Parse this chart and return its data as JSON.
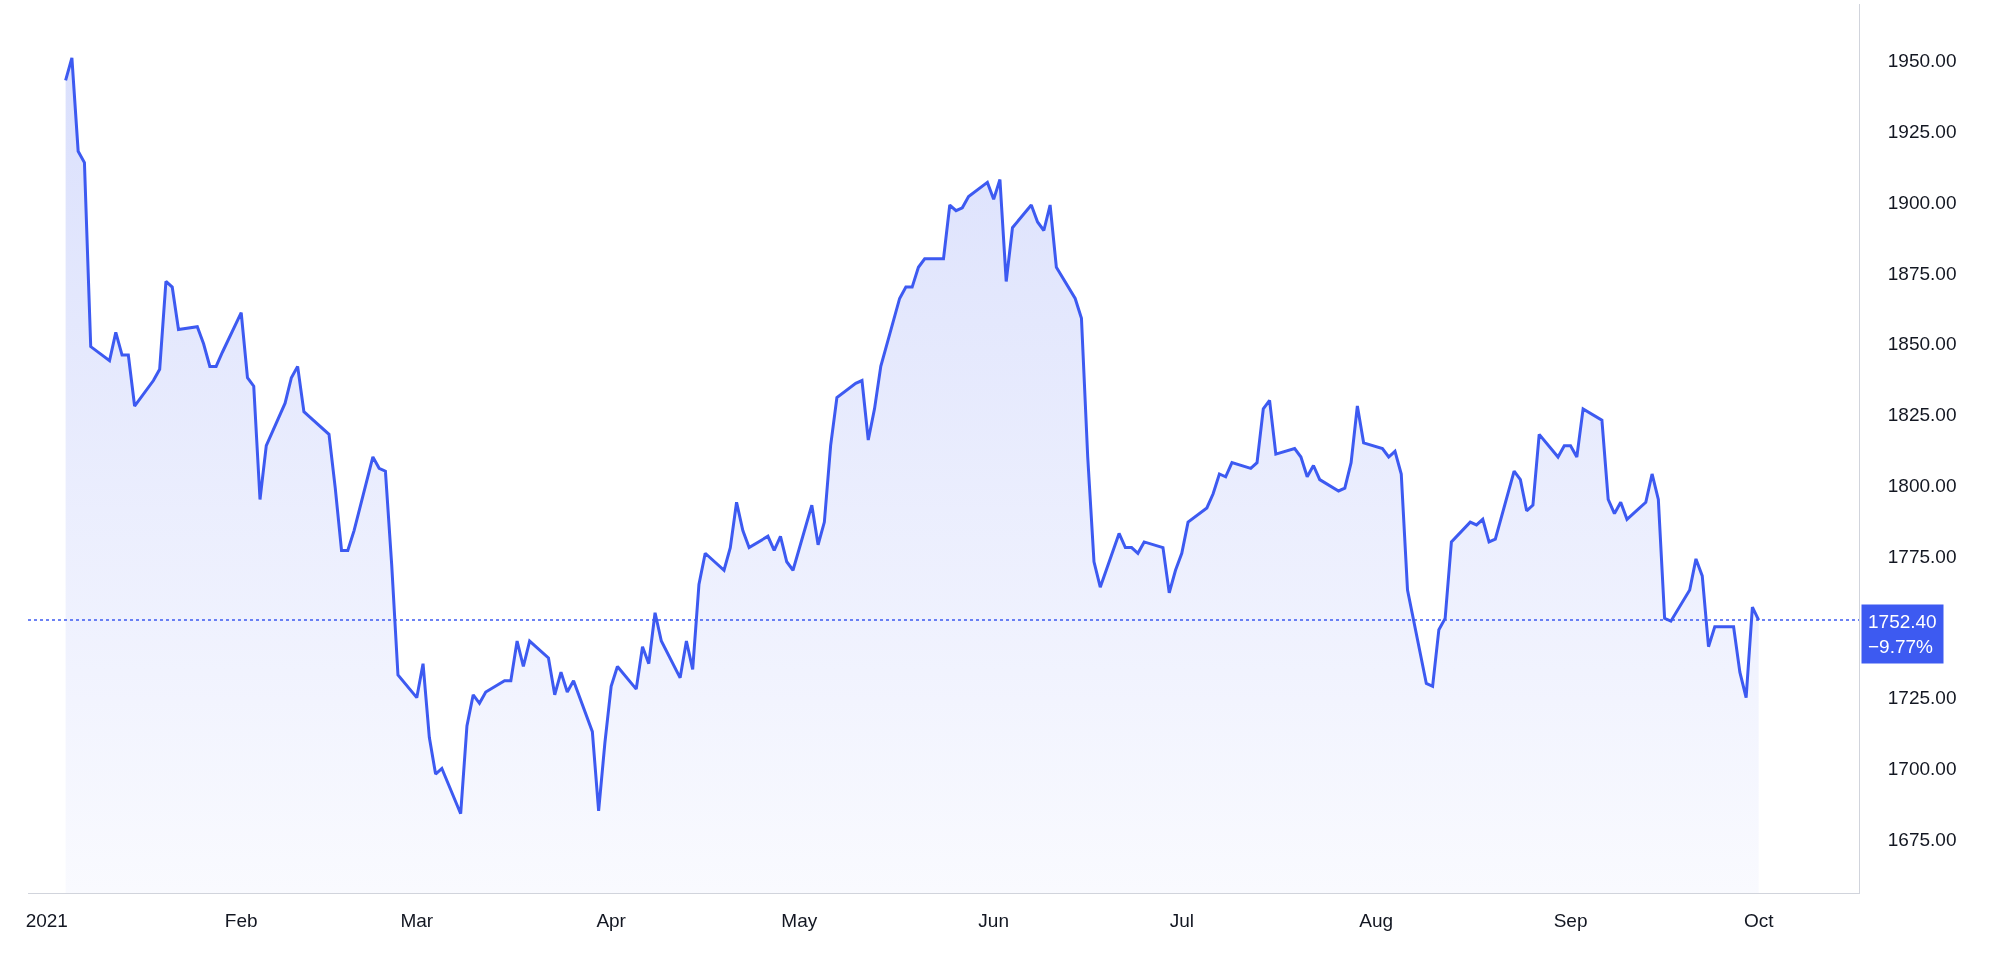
{
  "chart_data": {
    "type": "area",
    "x": [
      "2021-01-04",
      "2021-01-05",
      "2021-01-06",
      "2021-01-07",
      "2021-01-08",
      "2021-01-11",
      "2021-01-12",
      "2021-01-13",
      "2021-01-14",
      "2021-01-15",
      "2021-01-18",
      "2021-01-19",
      "2021-01-20",
      "2021-01-21",
      "2021-01-22",
      "2021-01-25",
      "2021-01-26",
      "2021-01-27",
      "2021-01-28",
      "2021-01-29",
      "2021-02-01",
      "2021-02-02",
      "2021-02-03",
      "2021-02-04",
      "2021-02-05",
      "2021-02-08",
      "2021-02-09",
      "2021-02-10",
      "2021-02-11",
      "2021-02-12",
      "2021-02-15",
      "2021-02-16",
      "2021-02-17",
      "2021-02-18",
      "2021-02-19",
      "2021-02-22",
      "2021-02-23",
      "2021-02-24",
      "2021-02-25",
      "2021-02-26",
      "2021-03-01",
      "2021-03-02",
      "2021-03-03",
      "2021-03-04",
      "2021-03-05",
      "2021-03-08",
      "2021-03-09",
      "2021-03-10",
      "2021-03-11",
      "2021-03-12",
      "2021-03-15",
      "2021-03-16",
      "2021-03-17",
      "2021-03-18",
      "2021-03-19",
      "2021-03-22",
      "2021-03-23",
      "2021-03-24",
      "2021-03-25",
      "2021-03-26",
      "2021-03-29",
      "2021-03-30",
      "2021-03-31",
      "2021-04-01",
      "2021-04-02",
      "2021-04-05",
      "2021-04-06",
      "2021-04-07",
      "2021-04-08",
      "2021-04-09",
      "2021-04-12",
      "2021-04-13",
      "2021-04-14",
      "2021-04-15",
      "2021-04-16",
      "2021-04-19",
      "2021-04-20",
      "2021-04-21",
      "2021-04-22",
      "2021-04-23",
      "2021-04-26",
      "2021-04-27",
      "2021-04-28",
      "2021-04-29",
      "2021-04-30",
      "2021-05-03",
      "2021-05-04",
      "2021-05-05",
      "2021-05-06",
      "2021-05-07",
      "2021-05-10",
      "2021-05-11",
      "2021-05-12",
      "2021-05-13",
      "2021-05-14",
      "2021-05-17",
      "2021-05-18",
      "2021-05-19",
      "2021-05-20",
      "2021-05-21",
      "2021-05-24",
      "2021-05-25",
      "2021-05-26",
      "2021-05-27",
      "2021-05-28",
      "2021-05-31",
      "2021-06-01",
      "2021-06-02",
      "2021-06-03",
      "2021-06-04",
      "2021-06-07",
      "2021-06-08",
      "2021-06-09",
      "2021-06-10",
      "2021-06-11",
      "2021-06-14",
      "2021-06-15",
      "2021-06-16",
      "2021-06-17",
      "2021-06-18",
      "2021-06-21",
      "2021-06-22",
      "2021-06-23",
      "2021-06-24",
      "2021-06-25",
      "2021-06-28",
      "2021-06-29",
      "2021-06-30",
      "2021-07-01",
      "2021-07-02",
      "2021-07-05",
      "2021-07-06",
      "2021-07-07",
      "2021-07-08",
      "2021-07-09",
      "2021-07-12",
      "2021-07-13",
      "2021-07-14",
      "2021-07-15",
      "2021-07-16",
      "2021-07-19",
      "2021-07-20",
      "2021-07-21",
      "2021-07-22",
      "2021-07-23",
      "2021-07-26",
      "2021-07-27",
      "2021-07-28",
      "2021-07-29",
      "2021-07-30",
      "2021-08-02",
      "2021-08-03",
      "2021-08-04",
      "2021-08-05",
      "2021-08-06",
      "2021-08-09",
      "2021-08-10",
      "2021-08-11",
      "2021-08-12",
      "2021-08-13",
      "2021-08-16",
      "2021-08-17",
      "2021-08-18",
      "2021-08-19",
      "2021-08-20",
      "2021-08-23",
      "2021-08-24",
      "2021-08-25",
      "2021-08-26",
      "2021-08-27",
      "2021-08-30",
      "2021-08-31",
      "2021-09-01",
      "2021-09-02",
      "2021-09-03",
      "2021-09-06",
      "2021-09-07",
      "2021-09-08",
      "2021-09-09",
      "2021-09-10",
      "2021-09-13",
      "2021-09-14",
      "2021-09-15",
      "2021-09-16",
      "2021-09-17",
      "2021-09-20",
      "2021-09-21",
      "2021-09-22",
      "2021-09-23",
      "2021-09-24",
      "2021-09-27",
      "2021-09-28",
      "2021-09-29",
      "2021-09-30",
      "2021-10-01"
    ],
    "series": [
      {
        "color": "#3d5af1",
        "values": [
          1943,
          1951,
          1918,
          1914,
          1849,
          1844,
          1854,
          1846,
          1846,
          1828,
          1837,
          1841,
          1872,
          1870,
          1855,
          1856,
          1850,
          1842,
          1842,
          1847,
          1861,
          1838,
          1835,
          1795,
          1814,
          1829,
          1838,
          1842,
          1826,
          1824,
          1818,
          1799,
          1777,
          1777,
          1784,
          1810,
          1806,
          1805,
          1772,
          1733,
          1725,
          1737,
          1711,
          1698,
          1700,
          1684,
          1715,
          1726,
          1723,
          1727,
          1731,
          1731,
          1745,
          1736,
          1745,
          1739,
          1726,
          1734,
          1727,
          1731,
          1713,
          1685,
          1709,
          1729,
          1736,
          1728,
          1743,
          1737,
          1755,
          1745,
          1732,
          1745,
          1735,
          1765,
          1776,
          1770,
          1778,
          1794,
          1784,
          1778,
          1782,
          1777,
          1782,
          1773,
          1770,
          1793,
          1779,
          1787,
          1814,
          1831,
          1836,
          1837,
          1816,
          1827,
          1842,
          1866,
          1870,
          1870,
          1877,
          1880,
          1880,
          1899,
          1897,
          1898,
          1902,
          1907,
          1901,
          1908,
          1872,
          1891,
          1899,
          1893,
          1890,
          1899,
          1877,
          1866,
          1859,
          1810,
          1773,
          1764,
          1783,
          1778,
          1778,
          1776,
          1780,
          1778,
          1762,
          1770,
          1776,
          1787,
          1792,
          1797,
          1804,
          1803,
          1808,
          1806,
          1808,
          1827,
          1830,
          1811,
          1813,
          1810,
          1803,
          1807,
          1802,
          1798,
          1799,
          1808,
          1828,
          1815,
          1813,
          1810,
          1812,
          1804,
          1763,
          1730,
          1729,
          1749,
          1753,
          1780,
          1787,
          1786,
          1788,
          1780,
          1781,
          1805,
          1802,
          1791,
          1793,
          1818,
          1810,
          1814,
          1814,
          1810,
          1827,
          1823,
          1795,
          1790,
          1794,
          1788,
          1794,
          1804,
          1795,
          1753,
          1752,
          1763,
          1774,
          1768,
          1743,
          1750,
          1750,
          1734,
          1725,
          1757,
          1752.4
        ]
      }
    ],
    "xlim": [
      "2020-12-29",
      "2021-10-17"
    ],
    "xticks": [
      {
        "value": "2021-01-01",
        "label": "2021"
      },
      {
        "value": "2021-02-01",
        "label": "Feb"
      },
      {
        "value": "2021-03-01",
        "label": "Mar"
      },
      {
        "value": "2021-04-01",
        "label": "Apr"
      },
      {
        "value": "2021-05-01",
        "label": "May"
      },
      {
        "value": "2021-06-01",
        "label": "Jun"
      },
      {
        "value": "2021-07-01",
        "label": "Jul"
      },
      {
        "value": "2021-08-01",
        "label": "Aug"
      },
      {
        "value": "2021-09-01",
        "label": "Sep"
      },
      {
        "value": "2021-10-01",
        "label": "Oct"
      }
    ],
    "ylim": [
      1656,
      1970
    ],
    "yticks": [
      {
        "value": 1675,
        "label": "1675.00"
      },
      {
        "value": 1700,
        "label": "1700.00"
      },
      {
        "value": 1725,
        "label": "1725.00"
      },
      {
        "value": 1775,
        "label": "1775.00"
      },
      {
        "value": 1800,
        "label": "1800.00"
      },
      {
        "value": 1825,
        "label": "1825.00"
      },
      {
        "value": 1850,
        "label": "1850.00"
      },
      {
        "value": 1875,
        "label": "1875.00"
      },
      {
        "value": 1900,
        "label": "1900.00"
      },
      {
        "value": 1925,
        "label": "1925.00"
      },
      {
        "value": 1950,
        "label": "1950.00"
      }
    ],
    "ref_lines": [
      {
        "axis": "y",
        "value": 1752.4,
        "label": "1752.40\n−9.77%",
        "color": "#3d5af1",
        "line_style": "dotted"
      }
    ],
    "grid": false,
    "line_style": "solid",
    "marker": "none"
  }
}
